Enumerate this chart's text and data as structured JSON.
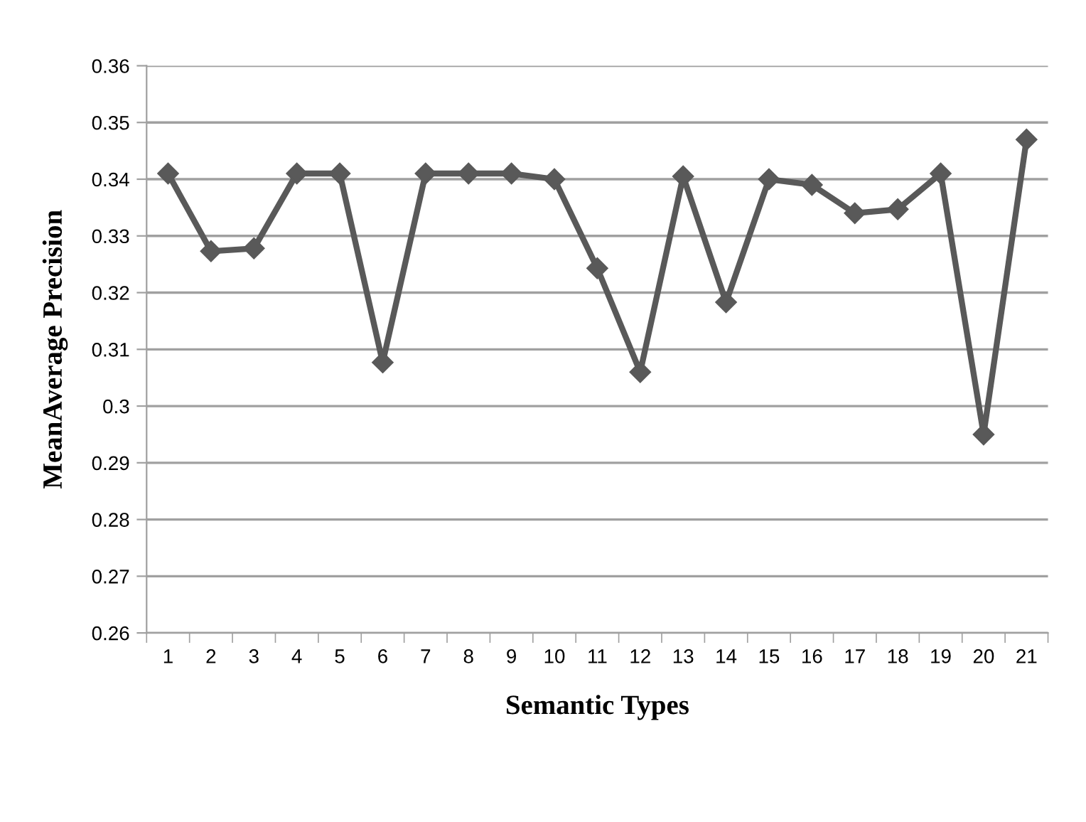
{
  "chart_data": {
    "type": "line",
    "xlabel": "Semantic Types",
    "ylabel": "MeanAverage Precision",
    "categories": [
      "1",
      "2",
      "3",
      "4",
      "5",
      "6",
      "7",
      "8",
      "9",
      "10",
      "11",
      "12",
      "13",
      "14",
      "15",
      "16",
      "17",
      "18",
      "19",
      "20",
      "21"
    ],
    "series": [
      {
        "color": "#595959",
        "values": [
          0.341,
          0.3273,
          0.3278,
          0.341,
          0.341,
          0.3077,
          0.341,
          0.341,
          0.341,
          0.34,
          0.3243,
          0.306,
          0.3405,
          0.3183,
          0.34,
          0.339,
          0.334,
          0.3347,
          0.341,
          0.295,
          0.347
        ]
      }
    ],
    "ylim": [
      0.26,
      0.36
    ],
    "yticks": [
      0.26,
      0.27,
      0.28,
      0.29,
      {
        "value": 0.3,
        "label": "0.3"
      },
      0.31,
      0.32,
      0.33,
      0.34,
      0.35,
      0.36
    ],
    "grid": "y",
    "marker": "diamond",
    "line_style": "solid",
    "legend": false
  }
}
